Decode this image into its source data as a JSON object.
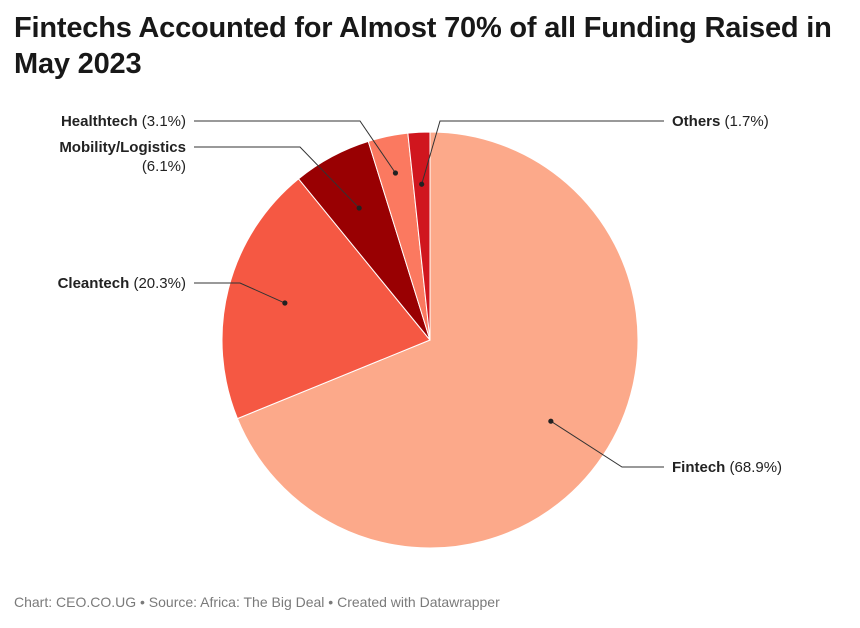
{
  "title": "Fintechs Accounted for Almost 70% of all Funding Raised in May 2023",
  "footer": "Chart: CEO.CO.UG • Source: Africa: The Big Deal • Created with Datawrapper",
  "chart_data": {
    "type": "pie",
    "title": "Fintechs Accounted for Almost 70% of all Funding Raised in May 2023",
    "series": [
      {
        "name": "Fintech",
        "value": 68.9,
        "display": "(68.9%)",
        "color": "#fca98a"
      },
      {
        "name": "Cleantech",
        "value": 20.3,
        "display": "(20.3%)",
        "color": "#f55843"
      },
      {
        "name": "Mobility/Logistics",
        "value": 6.1,
        "display": "(6.1%)",
        "color": "#990002"
      },
      {
        "name": "Healthtech",
        "value": 3.1,
        "display": "(3.1%)",
        "color": "#fb7960"
      },
      {
        "name": "Others",
        "value": 1.7,
        "display": "(1.7%)",
        "color": "#d0161e"
      }
    ]
  }
}
